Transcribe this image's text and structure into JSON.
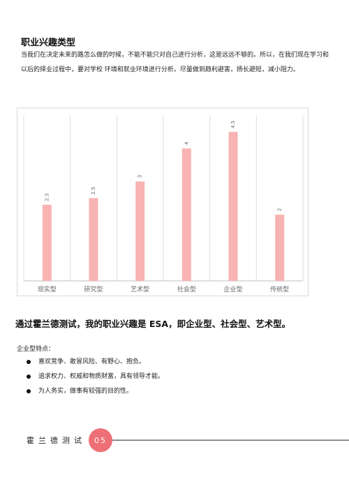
{
  "section": {
    "heading": "职业兴趣类型",
    "intro": "当我们在决定未来的路怎么做的时候，不能不能只对自己进行分析，这是远远不够的。所以，在我们现在学习和以后的择业过程中，要对学校 环境和就业环境进行分析。尽量做到趋利避害，扬长避短，减小阻力。"
  },
  "chart_data": {
    "type": "bar",
    "categories": [
      "现实型",
      "研究型",
      "艺术型",
      "社会型",
      "企业型",
      "传统型"
    ],
    "values": [
      2.3,
      2.5,
      3,
      4,
      4.5,
      2
    ],
    "data_labels": [
      "2.3",
      "2.5",
      "3",
      "4",
      "4.5",
      "2"
    ],
    "ylim": [
      0,
      5
    ],
    "bar_color": "#f8b3b3",
    "grid": "vertical category separators",
    "legend": "none"
  },
  "result": {
    "text": "通过霍兰德测试，我的职业兴趣是 ESA，即企业型、社会型、艺术型。"
  },
  "traits": {
    "title": "企业型特点：",
    "items": [
      "喜欢竞争、敢冒风险、有野心、抱负。",
      "追求权力、权威和物质财富，具有领导才能。",
      "为人务实，做事有较强的目的性。"
    ]
  },
  "footer": {
    "title": "霍兰德测试",
    "page": "05",
    "accent_color": "#ee6f75"
  }
}
